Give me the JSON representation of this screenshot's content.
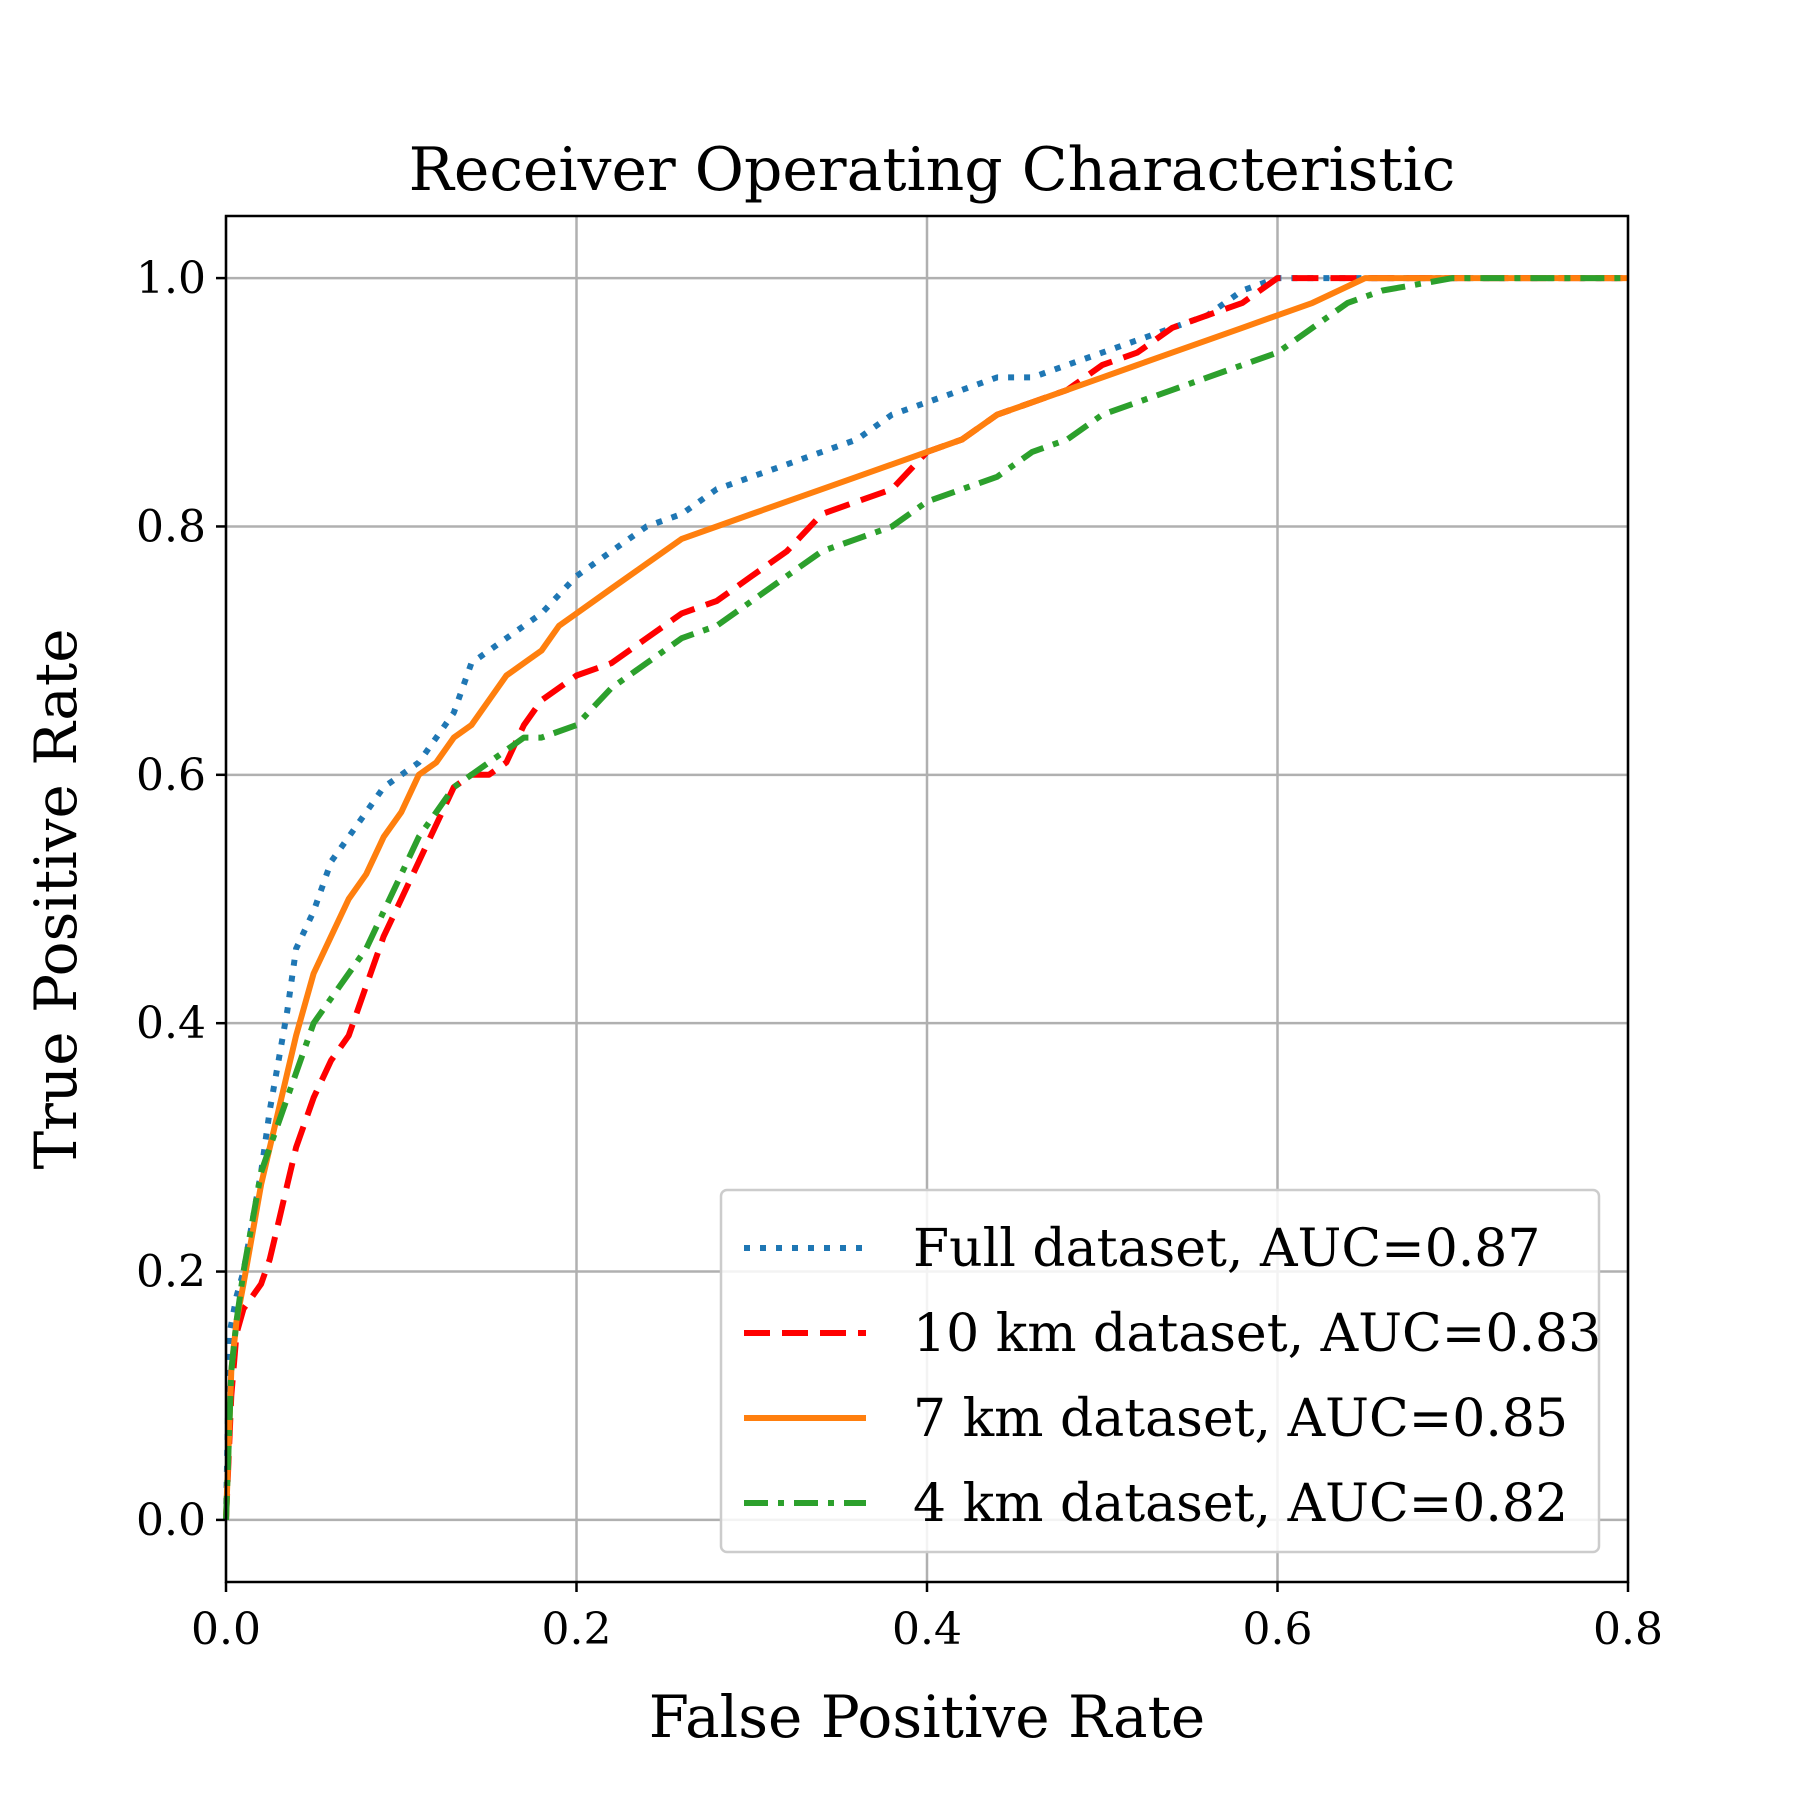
{
  "chart_data": {
    "type": "line",
    "title": "Receiver Operating Characteristic",
    "xlabel": "False Positive Rate",
    "ylabel": "True Positive Rate",
    "xlim": [
      0.0,
      0.8
    ],
    "ylim": [
      -0.05,
      1.05
    ],
    "xticks": [
      "0.0",
      "0.2",
      "0.4",
      "0.6",
      "0.8"
    ],
    "yticks": [
      "0.0",
      "0.2",
      "0.4",
      "0.6",
      "0.8",
      "1.0"
    ],
    "grid": true,
    "legend_position": "lower-right",
    "series": [
      {
        "name": "Full dataset, AUC=0.87",
        "color": "#1f77b4",
        "dash": "dotted",
        "x": [
          0.0,
          0.002,
          0.006,
          0.01,
          0.015,
          0.02,
          0.025,
          0.03,
          0.035,
          0.04,
          0.05,
          0.06,
          0.07,
          0.08,
          0.09,
          0.1,
          0.11,
          0.12,
          0.13,
          0.14,
          0.16,
          0.18,
          0.2,
          0.22,
          0.24,
          0.26,
          0.28,
          0.3,
          0.32,
          0.34,
          0.36,
          0.38,
          0.4,
          0.42,
          0.44,
          0.46,
          0.48,
          0.5,
          0.52,
          0.54,
          0.56,
          0.58,
          0.6,
          0.65,
          0.7,
          0.75,
          0.8
        ],
        "y": [
          0.0,
          0.15,
          0.18,
          0.2,
          0.24,
          0.28,
          0.33,
          0.37,
          0.41,
          0.46,
          0.49,
          0.53,
          0.55,
          0.57,
          0.59,
          0.6,
          0.61,
          0.63,
          0.65,
          0.69,
          0.71,
          0.73,
          0.76,
          0.78,
          0.8,
          0.81,
          0.83,
          0.84,
          0.85,
          0.86,
          0.87,
          0.89,
          0.9,
          0.91,
          0.92,
          0.92,
          0.93,
          0.94,
          0.95,
          0.96,
          0.97,
          0.99,
          1.0,
          1.0,
          1.0,
          1.0,
          1.0
        ]
      },
      {
        "name": "10 km dataset, AUC=0.83",
        "color": "#ff0000",
        "dash": "dashed",
        "x": [
          0.0,
          0.003,
          0.006,
          0.01,
          0.015,
          0.02,
          0.025,
          0.03,
          0.035,
          0.04,
          0.05,
          0.06,
          0.07,
          0.08,
          0.09,
          0.1,
          0.11,
          0.12,
          0.13,
          0.14,
          0.15,
          0.16,
          0.17,
          0.18,
          0.2,
          0.22,
          0.24,
          0.26,
          0.28,
          0.3,
          0.32,
          0.34,
          0.36,
          0.38,
          0.4,
          0.42,
          0.44,
          0.46,
          0.48,
          0.5,
          0.52,
          0.54,
          0.56,
          0.58,
          0.6,
          0.65,
          0.7,
          0.75,
          0.8
        ],
        "y": [
          0.0,
          0.1,
          0.15,
          0.17,
          0.18,
          0.19,
          0.21,
          0.24,
          0.27,
          0.3,
          0.34,
          0.37,
          0.39,
          0.43,
          0.47,
          0.5,
          0.53,
          0.56,
          0.59,
          0.6,
          0.6,
          0.61,
          0.64,
          0.66,
          0.68,
          0.69,
          0.71,
          0.73,
          0.74,
          0.76,
          0.78,
          0.81,
          0.82,
          0.83,
          0.86,
          0.87,
          0.89,
          0.9,
          0.91,
          0.93,
          0.94,
          0.96,
          0.97,
          0.98,
          1.0,
          1.0,
          1.0,
          1.0,
          1.0
        ]
      },
      {
        "name": "7 km dataset, AUC=0.85",
        "color": "#ff7f0e",
        "dash": "solid",
        "x": [
          0.0,
          0.003,
          0.006,
          0.01,
          0.015,
          0.02,
          0.025,
          0.03,
          0.035,
          0.04,
          0.05,
          0.06,
          0.07,
          0.08,
          0.09,
          0.1,
          0.11,
          0.12,
          0.13,
          0.14,
          0.15,
          0.16,
          0.17,
          0.18,
          0.19,
          0.2,
          0.22,
          0.24,
          0.26,
          0.28,
          0.3,
          0.32,
          0.34,
          0.36,
          0.38,
          0.4,
          0.42,
          0.44,
          0.46,
          0.48,
          0.5,
          0.52,
          0.54,
          0.56,
          0.58,
          0.6,
          0.62,
          0.65,
          0.7,
          0.75,
          0.8
        ],
        "y": [
          0.0,
          0.12,
          0.16,
          0.19,
          0.23,
          0.27,
          0.3,
          0.33,
          0.36,
          0.39,
          0.44,
          0.47,
          0.5,
          0.52,
          0.55,
          0.57,
          0.6,
          0.61,
          0.63,
          0.64,
          0.66,
          0.68,
          0.69,
          0.7,
          0.72,
          0.73,
          0.75,
          0.77,
          0.79,
          0.8,
          0.81,
          0.82,
          0.83,
          0.84,
          0.85,
          0.86,
          0.87,
          0.89,
          0.9,
          0.91,
          0.92,
          0.93,
          0.94,
          0.95,
          0.96,
          0.97,
          0.98,
          1.0,
          1.0,
          1.0,
          1.0
        ]
      },
      {
        "name": "4 km dataset, AUC=0.82",
        "color": "#2ca02c",
        "dash": "dashdot",
        "x": [
          0.0,
          0.003,
          0.006,
          0.01,
          0.015,
          0.02,
          0.025,
          0.03,
          0.035,
          0.04,
          0.05,
          0.06,
          0.07,
          0.08,
          0.09,
          0.1,
          0.11,
          0.12,
          0.13,
          0.14,
          0.15,
          0.16,
          0.17,
          0.18,
          0.2,
          0.22,
          0.24,
          0.26,
          0.28,
          0.3,
          0.32,
          0.34,
          0.36,
          0.38,
          0.4,
          0.42,
          0.44,
          0.46,
          0.48,
          0.5,
          0.52,
          0.54,
          0.56,
          0.58,
          0.6,
          0.62,
          0.64,
          0.66,
          0.7,
          0.75,
          0.8
        ],
        "y": [
          0.0,
          0.12,
          0.16,
          0.2,
          0.24,
          0.28,
          0.3,
          0.32,
          0.34,
          0.36,
          0.4,
          0.42,
          0.44,
          0.46,
          0.49,
          0.52,
          0.55,
          0.57,
          0.59,
          0.6,
          0.61,
          0.62,
          0.63,
          0.63,
          0.64,
          0.67,
          0.69,
          0.71,
          0.72,
          0.74,
          0.76,
          0.78,
          0.79,
          0.8,
          0.82,
          0.83,
          0.84,
          0.86,
          0.87,
          0.89,
          0.9,
          0.91,
          0.92,
          0.93,
          0.94,
          0.96,
          0.98,
          0.99,
          1.0,
          1.0,
          1.0
        ]
      }
    ]
  }
}
